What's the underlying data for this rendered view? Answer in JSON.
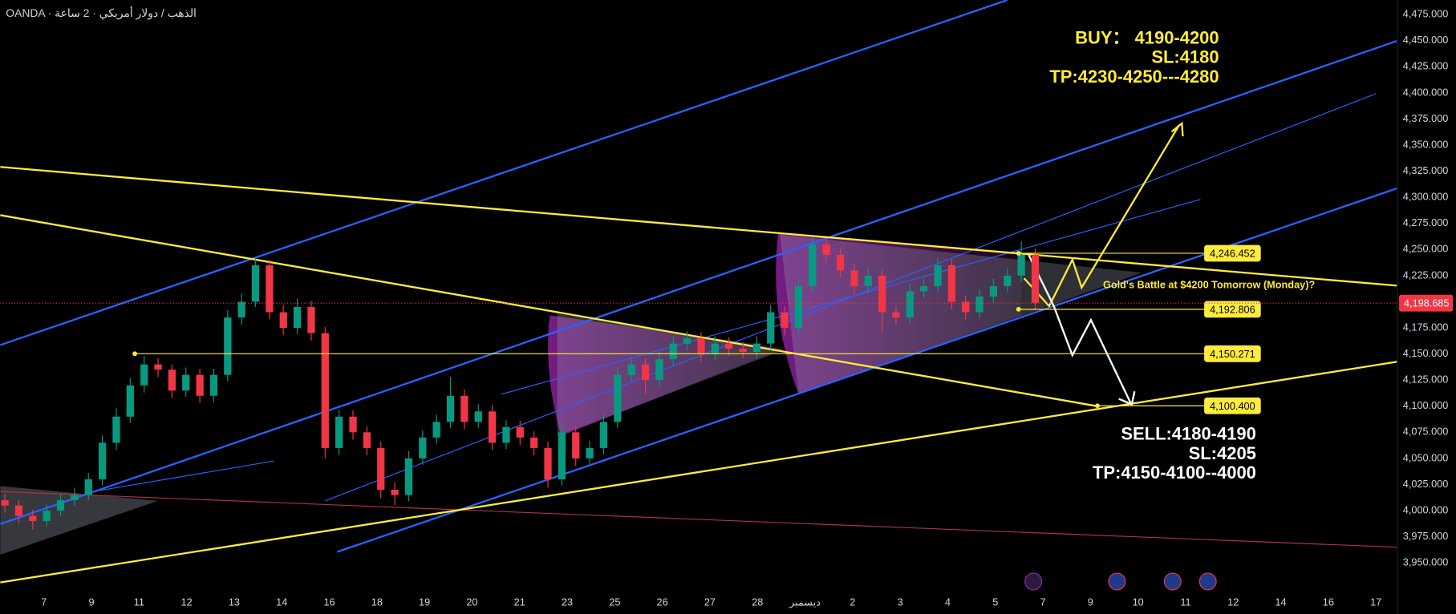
{
  "chart_data": {
    "type": "candlestick",
    "title": "OANDA · الذهب / دولار أمريكي · 2 ساعة",
    "categories": [
      "7",
      "9",
      "11",
      "12",
      "13",
      "14",
      "16",
      "18",
      "19",
      "20",
      "21",
      "23",
      "25",
      "26",
      "27",
      "28",
      "ديسمبر",
      "2",
      "3",
      "4",
      "5",
      "7",
      "9",
      "10",
      "11",
      "12",
      "14",
      "16",
      "17"
    ],
    "ylim": [
      3925,
      4489
    ],
    "yticks": [
      {
        "value": 4475,
        "label": "4,475.000"
      },
      {
        "value": 4450,
        "label": "4,450.000"
      },
      {
        "value": 4425,
        "label": "4,425.000"
      },
      {
        "value": 4400,
        "label": "4,400.000"
      },
      {
        "value": 4375,
        "label": "4,375.000"
      },
      {
        "value": 4350,
        "label": "4,350.000"
      },
      {
        "value": 4325,
        "label": "4,325.000"
      },
      {
        "value": 4300,
        "label": "4,300.000"
      },
      {
        "value": 4275,
        "label": "4,275.000"
      },
      {
        "value": 4250,
        "label": "4,250.000"
      },
      {
        "value": 4225,
        "label": "4,225.000"
      },
      {
        "value": 4200,
        "label": "4,200.000"
      },
      {
        "value": 4175,
        "label": "4,175.000"
      },
      {
        "value": 4150,
        "label": "4,150.000"
      },
      {
        "value": 4125,
        "label": "4,125.000"
      },
      {
        "value": 4100,
        "label": "4,100.000"
      },
      {
        "value": 4075,
        "label": "4,075.000"
      },
      {
        "value": 4050,
        "label": "4,050.000"
      },
      {
        "value": 4025,
        "label": "4,025.000"
      },
      {
        "value": 4000,
        "label": "4,000.000"
      },
      {
        "value": 3975,
        "label": "3,975.000"
      },
      {
        "value": 3950,
        "label": "3,950.000"
      }
    ],
    "grid": false,
    "up_color": "#089981",
    "down_color": "#f23645",
    "ohlc": [
      [
        4010,
        4016,
        3998,
        4005
      ],
      [
        4005,
        4010,
        3988,
        3995
      ],
      [
        3995,
        4001,
        3982,
        3990
      ],
      [
        3990,
        4006,
        3985,
        4000
      ],
      [
        4000,
        4016,
        3995,
        4010
      ],
      [
        4010,
        4022,
        4004,
        4015
      ],
      [
        4015,
        4036,
        4010,
        4030
      ],
      [
        4030,
        4072,
        4024,
        4065
      ],
      [
        4065,
        4098,
        4058,
        4090
      ],
      [
        4090,
        4127,
        4084,
        4120
      ],
      [
        4120,
        4148,
        4113,
        4140
      ],
      [
        4140,
        4146,
        4128,
        4135
      ],
      [
        4135,
        4140,
        4108,
        4115
      ],
      [
        4115,
        4137,
        4109,
        4130
      ],
      [
        4130,
        4136,
        4103,
        4110
      ],
      [
        4110,
        4136,
        4104,
        4130
      ],
      [
        4130,
        4192,
        4124,
        4185
      ],
      [
        4185,
        4208,
        4178,
        4200
      ],
      [
        4200,
        4242,
        4195,
        4235
      ],
      [
        4235,
        4240,
        4183,
        4190
      ],
      [
        4190,
        4197,
        4168,
        4175
      ],
      [
        4175,
        4203,
        4169,
        4195
      ],
      [
        4195,
        4201,
        4163,
        4170
      ],
      [
        4170,
        4176,
        4050,
        4060
      ],
      [
        4060,
        4097,
        4053,
        4090
      ],
      [
        4090,
        4096,
        4068,
        4075
      ],
      [
        4075,
        4081,
        4053,
        4060
      ],
      [
        4060,
        4066,
        4012,
        4020
      ],
      [
        4020,
        4027,
        4005,
        4015
      ],
      [
        4015,
        4057,
        4009,
        4050
      ],
      [
        4050,
        4077,
        4044,
        4070
      ],
      [
        4070,
        4092,
        4064,
        4085
      ],
      [
        4085,
        4128,
        4079,
        4110
      ],
      [
        4110,
        4116,
        4078,
        4085
      ],
      [
        4085,
        4102,
        4079,
        4095
      ],
      [
        4095,
        4101,
        4058,
        4065
      ],
      [
        4065,
        4087,
        4059,
        4080
      ],
      [
        4080,
        4086,
        4063,
        4070
      ],
      [
        4070,
        4076,
        4053,
        4060
      ],
      [
        4060,
        4066,
        4022,
        4030
      ],
      [
        4030,
        4082,
        4024,
        4075
      ],
      [
        4075,
        4081,
        4043,
        4050
      ],
      [
        4050,
        4067,
        4044,
        4060
      ],
      [
        4060,
        4092,
        4054,
        4085
      ],
      [
        4085,
        4137,
        4079,
        4130
      ],
      [
        4130,
        4147,
        4124,
        4140
      ],
      [
        4140,
        4146,
        4112,
        4125
      ],
      [
        4125,
        4152,
        4119,
        4145
      ],
      [
        4145,
        4167,
        4139,
        4160
      ],
      [
        4160,
        4172,
        4154,
        4165
      ],
      [
        4165,
        4171,
        4143,
        4150
      ],
      [
        4150,
        4167,
        4144,
        4160
      ],
      [
        4160,
        4166,
        4148,
        4155
      ],
      [
        4155,
        4161,
        4146,
        4152
      ],
      [
        4152,
        4167,
        4146,
        4160
      ],
      [
        4160,
        4197,
        4154,
        4190
      ],
      [
        4190,
        4196,
        4168,
        4175
      ],
      [
        4175,
        4222,
        4169,
        4215
      ],
      [
        4215,
        4262,
        4209,
        4255
      ],
      [
        4255,
        4261,
        4238,
        4245
      ],
      [
        4245,
        4251,
        4223,
        4230
      ],
      [
        4230,
        4236,
        4208,
        4215
      ],
      [
        4215,
        4232,
        4209,
        4225
      ],
      [
        4225,
        4231,
        4170,
        4190
      ],
      [
        4190,
        4196,
        4178,
        4185
      ],
      [
        4185,
        4217,
        4179,
        4210
      ],
      [
        4210,
        4222,
        4204,
        4215
      ],
      [
        4215,
        4242,
        4209,
        4235
      ],
      [
        4235,
        4241,
        4193,
        4200
      ],
      [
        4200,
        4206,
        4183,
        4190
      ],
      [
        4190,
        4212,
        4184,
        4205
      ],
      [
        4205,
        4222,
        4199,
        4215
      ],
      [
        4215,
        4232,
        4209,
        4225
      ],
      [
        4225,
        4258,
        4219,
        4245
      ],
      [
        4245,
        4251,
        4192,
        4199
      ]
    ],
    "price_labels": [
      {
        "value": 4246.452,
        "label": "4,246.452"
      },
      {
        "value": 4192.806,
        "label": "4,192.806"
      },
      {
        "value": 4150.271,
        "label": "4,150.271"
      },
      {
        "value": 4100.4,
        "label": "4,100.400"
      }
    ],
    "current_price": {
      "value": 4198.685,
      "label": "4,198.685"
    },
    "annotations": {
      "buy": [
        "BUY： 4190-4200",
        "SL:4180",
        "TP:4230-4250---4280"
      ],
      "sell": [
        "SELL:4180-4190",
        "SL:4205",
        "TP:4150-4100--4000"
      ],
      "note": "Gold's Battle at $4200 Tomorrow (Monday)?"
    }
  }
}
